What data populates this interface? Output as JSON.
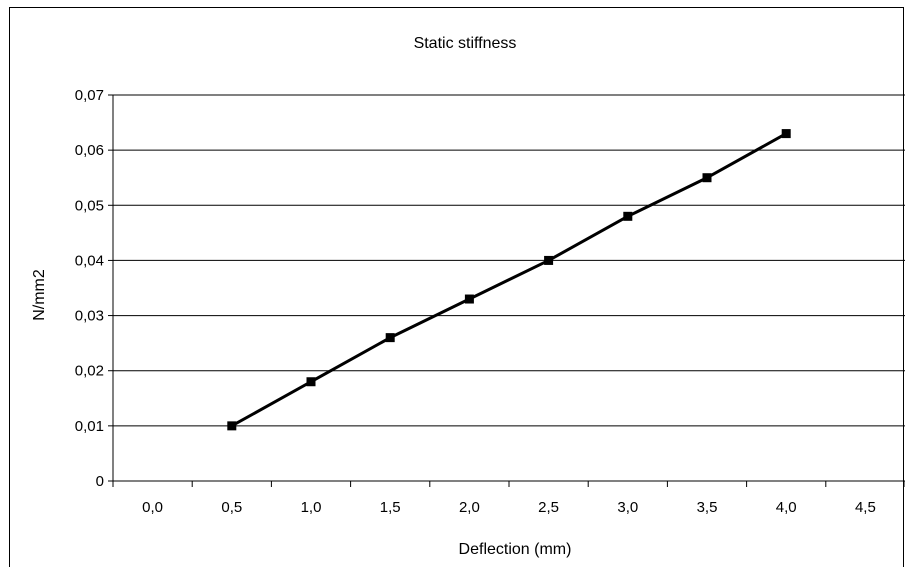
{
  "chart_data": {
    "type": "line",
    "title": "Static stiffness",
    "xlabel": "Deflection (mm)",
    "ylabel": "N/mm2",
    "x_tick_labels": [
      "0,0",
      "0,5",
      "1,0",
      "1,5",
      "2,0",
      "2,5",
      "3,0",
      "3,5",
      "4,0",
      "4,5"
    ],
    "y_tick_labels": [
      "0",
      "0,01",
      "0,02",
      "0,03",
      "0,04",
      "0,05",
      "0,06",
      "0,07"
    ],
    "y_ticks": [
      0,
      0.01,
      0.02,
      0.03,
      0.04,
      0.05,
      0.06,
      0.07
    ],
    "ylim": [
      0,
      0.07
    ],
    "grid": "horizontal",
    "legend": "none",
    "series": [
      {
        "x": [
          "0,5",
          "1,0",
          "1,5",
          "2,0",
          "2,5",
          "3,0",
          "3,5",
          "4,0"
        ],
        "values": [
          0.01,
          0.018,
          0.026,
          0.033,
          0.04,
          0.048,
          0.055,
          0.063
        ],
        "color": "#000000",
        "marker": "square"
      }
    ]
  }
}
